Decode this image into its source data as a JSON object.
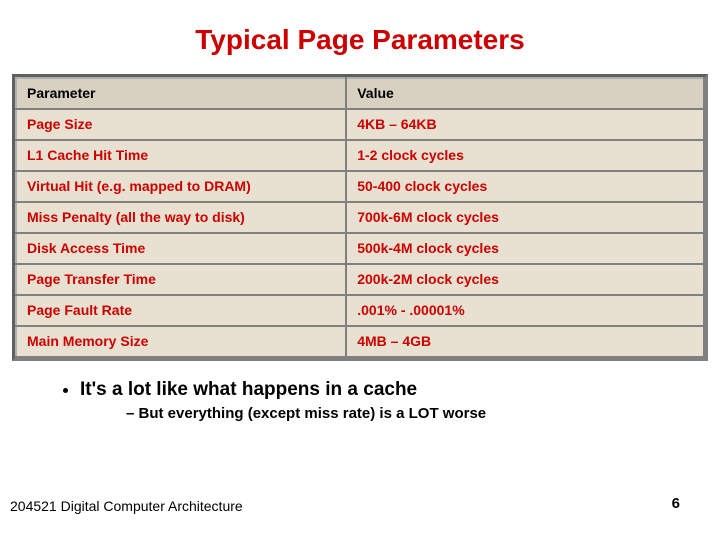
{
  "title": "Typical Page Parameters",
  "table": {
    "headers": {
      "param": "Parameter",
      "value": "Value"
    },
    "rows": [
      {
        "param": "Page Size",
        "value": "4KB – 64KB"
      },
      {
        "param": "L1 Cache Hit Time",
        "value": "1-2 clock cycles"
      },
      {
        "param": "Virtual Hit (e.g. mapped to DRAM)",
        "value": "50-400 clock cycles"
      },
      {
        "param": "Miss Penalty (all the way to disk)",
        "value": "700k-6M clock cycles"
      },
      {
        "param": "Disk Access Time",
        "value": "500k-4M clock cycles"
      },
      {
        "param": "Page Transfer Time",
        "value": "200k-2M clock cycles"
      },
      {
        "param": "Page Fault Rate",
        "value": ".001% - .00001%"
      },
      {
        "param": "Main Memory Size",
        "value": "4MB – 4GB"
      }
    ]
  },
  "bullets": {
    "main": "It's a lot like what happens in a cache",
    "sub": "But everything (except miss rate) is a LOT worse"
  },
  "footer": {
    "left": "204521 Digital Computer Architecture",
    "page": "6"
  },
  "colors": {
    "title": "#cc0000",
    "row_text": "#cc0000",
    "header_bg": "#d8d0c0",
    "row_bg": "#e8e0d0",
    "border": "#808080"
  }
}
